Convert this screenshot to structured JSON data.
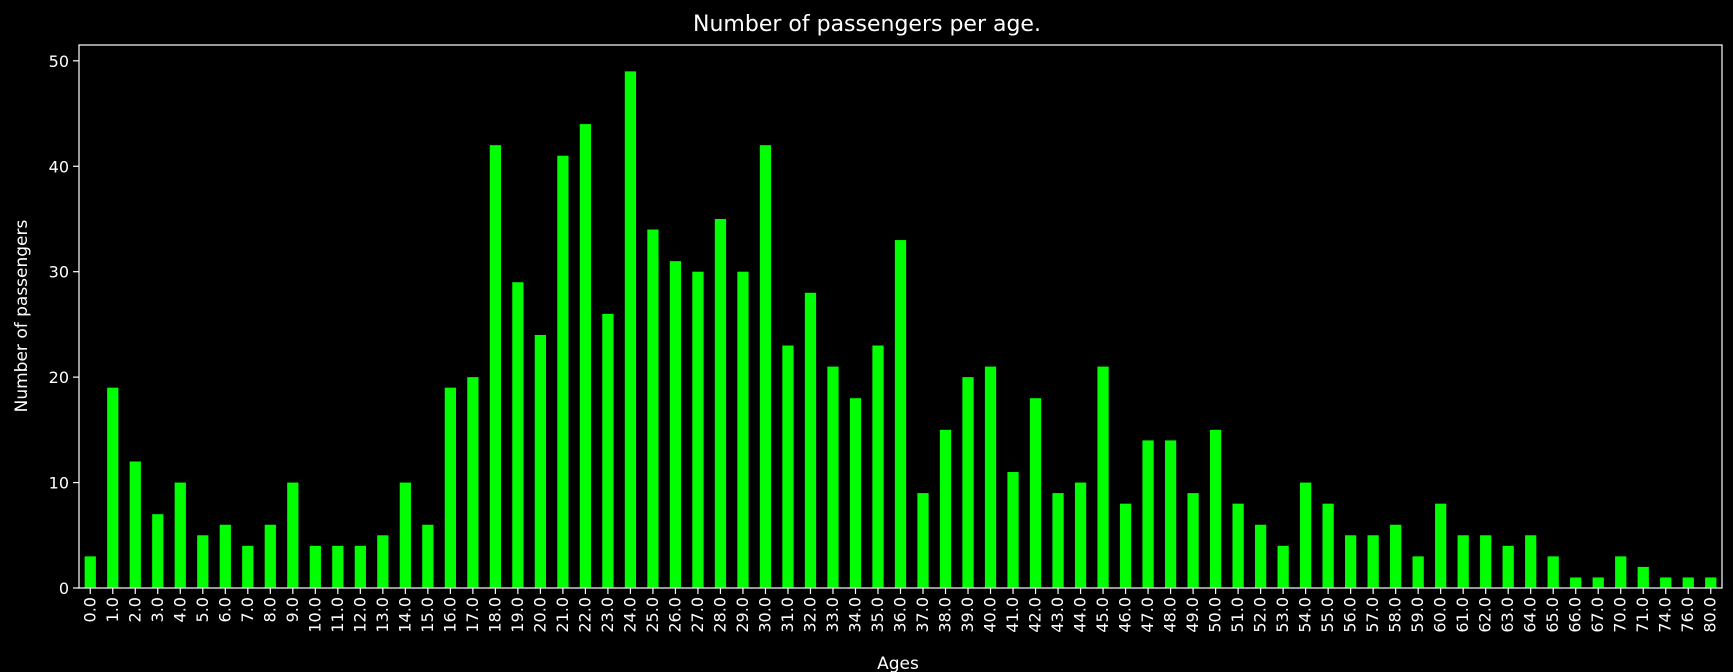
{
  "chart_data": {
    "type": "bar",
    "title": "Number of passengers per age.",
    "xlabel": "Ages",
    "ylabel": "Number of passengers",
    "ylim": [
      0,
      51.5
    ],
    "yticks": [
      0,
      10,
      20,
      30,
      40,
      50
    ],
    "yticklabels": [
      "0",
      "10",
      "20",
      "30",
      "40",
      "50"
    ],
    "grid": false,
    "legend": "none",
    "colors": {
      "bar": "#00ff00",
      "background": "#000000",
      "axes": "#ffffff",
      "text": "#ffffff"
    },
    "categories": [
      "0.0",
      "1.0",
      "2.0",
      "3.0",
      "4.0",
      "5.0",
      "6.0",
      "7.0",
      "8.0",
      "9.0",
      "10.0",
      "11.0",
      "12.0",
      "13.0",
      "14.0",
      "15.0",
      "16.0",
      "17.0",
      "18.0",
      "19.0",
      "20.0",
      "21.0",
      "22.0",
      "23.0",
      "24.0",
      "25.0",
      "26.0",
      "27.0",
      "28.0",
      "29.0",
      "30.0",
      "31.0",
      "32.0",
      "33.0",
      "34.0",
      "35.0",
      "36.0",
      "37.0",
      "38.0",
      "39.0",
      "40.0",
      "41.0",
      "42.0",
      "43.0",
      "44.0",
      "45.0",
      "46.0",
      "47.0",
      "48.0",
      "49.0",
      "50.0",
      "51.0",
      "52.0",
      "53.0",
      "54.0",
      "55.0",
      "56.0",
      "57.0",
      "58.0",
      "59.0",
      "60.0",
      "61.0",
      "62.0",
      "63.0",
      "64.0",
      "65.0",
      "66.0",
      "67.0",
      "70.0",
      "71.0",
      "74.0",
      "76.0",
      "80.0"
    ],
    "values": [
      3,
      19,
      12,
      7,
      10,
      5,
      6,
      4,
      6,
      10,
      4,
      4,
      4,
      5,
      10,
      6,
      19,
      20,
      42,
      29,
      24,
      41,
      44,
      26,
      49,
      34,
      31,
      30,
      35,
      30,
      42,
      23,
      28,
      21,
      18,
      23,
      33,
      9,
      15,
      20,
      21,
      11,
      18,
      9,
      10,
      21,
      8,
      14,
      14,
      9,
      15,
      8,
      6,
      4,
      10,
      8,
      5,
      5,
      6,
      3,
      8,
      5,
      5,
      4,
      5,
      3,
      1,
      1,
      3,
      2,
      1,
      1,
      1
    ]
  }
}
